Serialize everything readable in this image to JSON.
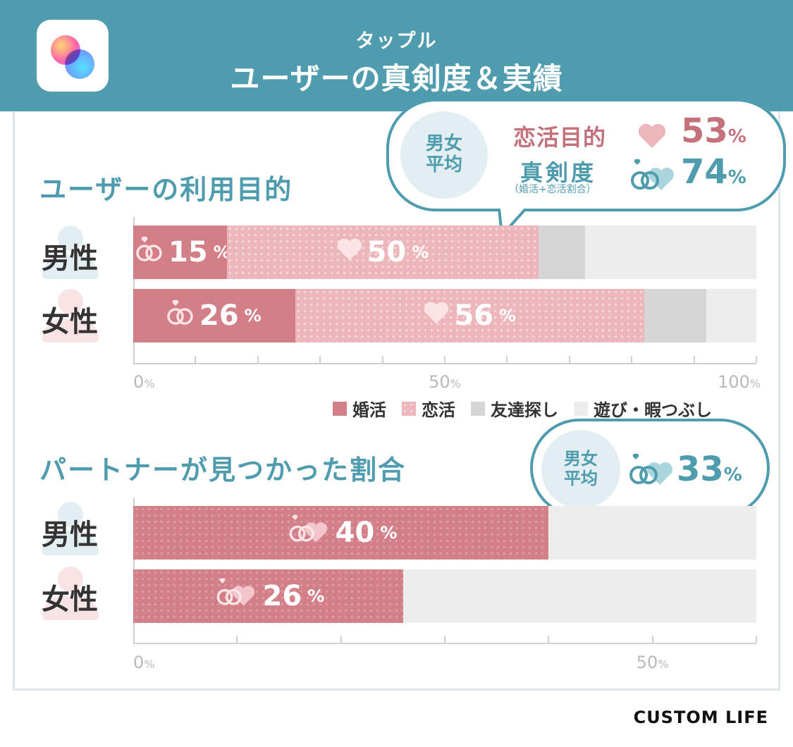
{
  "header": {
    "subtitle": "タップル",
    "title": "ユーザーの真剣度＆実績",
    "app_icon": "tapple-logo"
  },
  "colors": {
    "header_bg": "#4f9cae",
    "marriage": "#d27f88",
    "love": "#ecb6bb",
    "friends": "#d6d6d6",
    "fun": "#ededed",
    "accent_text": "#4f9cae",
    "seriousness_text": "#c5717c"
  },
  "section1": {
    "title": "ユーザーの利用目的",
    "bubble": {
      "circle_label_1": "男女",
      "circle_label_2": "平均",
      "love_label": "恋活目的",
      "love_value": "53",
      "serious_label": "真剣度",
      "serious_note": "（婚活+恋活割合）",
      "serious_value": "74",
      "unit": "%"
    }
  },
  "section2": {
    "title": "パートナーが見つかった割合",
    "bubble": {
      "circle_label_1": "男女",
      "circle_label_2": "平均",
      "value": "33",
      "unit": "%"
    }
  },
  "chart_data": [
    {
      "type": "bar",
      "stacked": true,
      "orientation": "horizontal",
      "categories": [
        "男性",
        "女性"
      ],
      "series": [
        {
          "name": "婚活",
          "values": [
            15,
            26
          ],
          "labels": [
            "15",
            "26"
          ],
          "icon": "rings-icon"
        },
        {
          "name": "恋活",
          "values": [
            50,
            56
          ],
          "labels": [
            "50",
            "56"
          ],
          "icon": "heart-icon"
        },
        {
          "name": "友達探し",
          "values": [
            7.5,
            10
          ]
        },
        {
          "name": "遊び・暇つぶし",
          "values": [
            27.5,
            8
          ]
        }
      ],
      "xlim": [
        0,
        100
      ],
      "ticks": [
        {
          "value": 0,
          "label": "0",
          "unit": "%"
        },
        {
          "value": 50,
          "label": "50",
          "unit": "%"
        },
        {
          "value": 100,
          "label": "100",
          "unit": "%"
        }
      ],
      "legend": "bottom-right"
    },
    {
      "type": "bar",
      "orientation": "horizontal",
      "categories": [
        "男性",
        "女性"
      ],
      "series": [
        {
          "values": [
            40,
            26
          ],
          "labels": [
            "40",
            "26"
          ],
          "icon": "rings-heart-icon"
        }
      ],
      "xlim": [
        0,
        60
      ],
      "ticks": [
        {
          "value": 0,
          "label": "0",
          "unit": "%"
        },
        {
          "value": 50,
          "label": "50",
          "unit": "%"
        }
      ]
    }
  ],
  "brand": "CUSTOM LIFE"
}
